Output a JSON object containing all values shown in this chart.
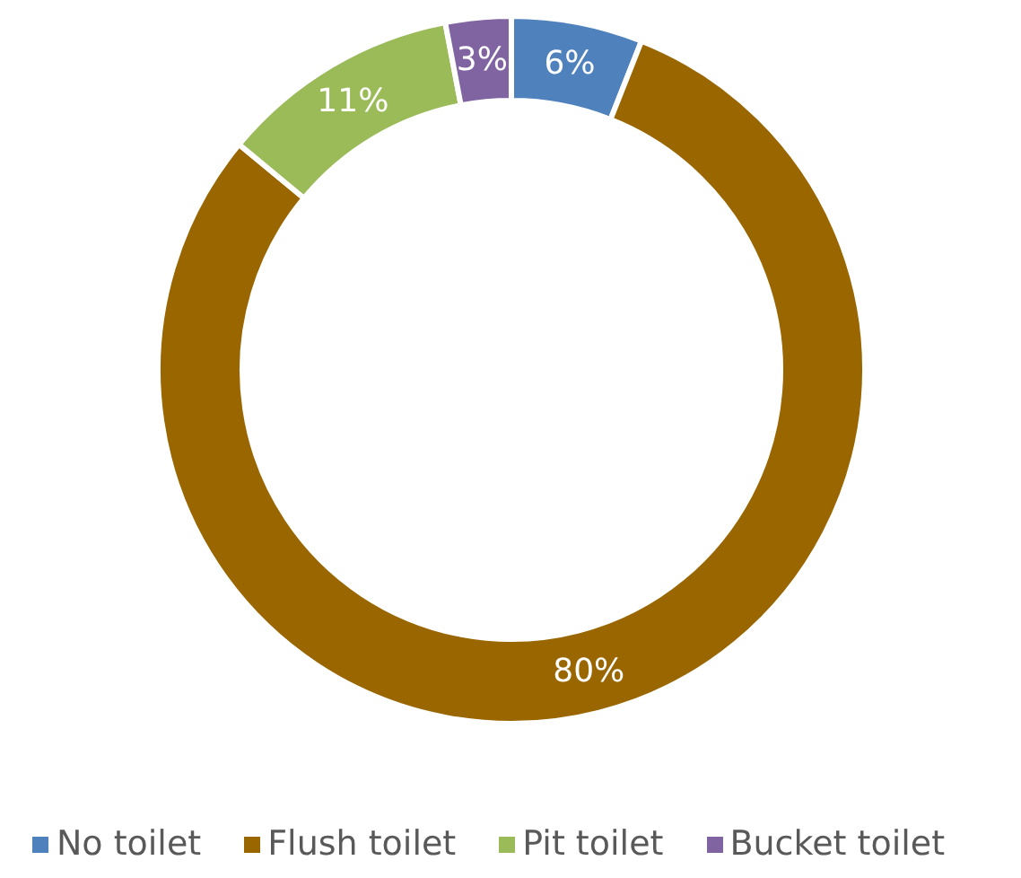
{
  "chart_data": {
    "type": "donut",
    "categories": [
      "No toilet",
      "Flush toilet",
      "Pit toilet",
      "Bucket toilet"
    ],
    "values": [
      6,
      80,
      11,
      3
    ],
    "colors": [
      "#4f81bd",
      "#996600",
      "#9bbb59",
      "#8064a2"
    ],
    "value_labels": [
      "6%",
      "80%",
      "11%",
      "3%"
    ],
    "legend": "bottom"
  }
}
